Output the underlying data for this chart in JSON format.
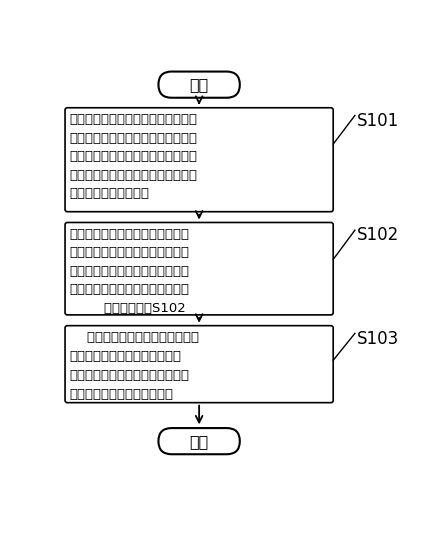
{
  "background_color": "#ffffff",
  "start_label": "开始",
  "end_label": "结束",
  "box1_lines": [
    "录入人脸用户基本信息，采集多张所",
    "述人脸用户的人脸图像并分别从中提",
    "取人脸特征作为人脸特征模板，将所",
    "述人脸用户基本信息和人脸特征模板",
    "保存至人脸用户信息库"
  ],
  "box2_lines": [
    "从采集到的当前用户人脸图像中提",
    "取人脸特征，并与所述人脸用户信",
    "息库中的人脸特征模板进行比对识",
    "别，若识别通过，继续下述步骤，",
    "        否则重复步骤S102"
  ],
  "box3_lines": [
    "    判断所述人脸特征是否满足预设",
    "自适应条件，若是，更新所述人",
    "脸用户信息库中的人脸特征模板，",
    "完成所述人脸特征自适应处理"
  ],
  "label1": "S101",
  "label2": "S102",
  "label3": "S103",
  "box_facecolor": "#ffffff",
  "box_edgecolor": "#000000",
  "text_color": "#000000",
  "arrow_color": "#000000",
  "font_size": 9.5,
  "label_font_size": 12
}
